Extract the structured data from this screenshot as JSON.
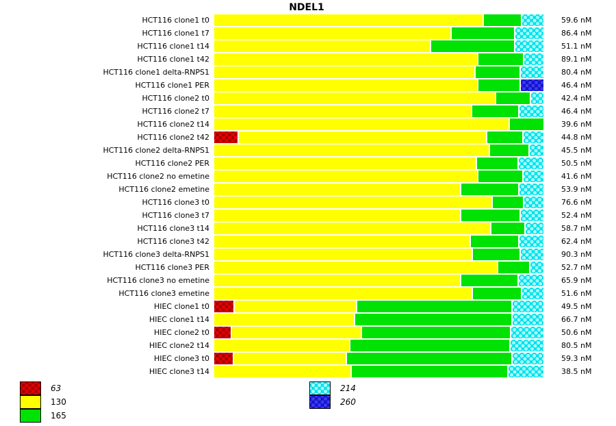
{
  "chart_data": {
    "type": "bar",
    "orientation": "horizontal",
    "stacked": true,
    "title": "NDEL1",
    "value_unit": "nM",
    "axis": {
      "x_range_percent": [
        0,
        100
      ],
      "gridlines": false,
      "ticks_visible": false
    },
    "bands": [
      {
        "id": "63",
        "label": "63",
        "color": "#e80000",
        "pattern": "crosshatch-dots",
        "italic": true
      },
      {
        "id": "130",
        "label": "130",
        "color": "#ffff00",
        "pattern": "solid",
        "italic": false
      },
      {
        "id": "165",
        "label": "165",
        "color": "#00e204",
        "pattern": "solid",
        "italic": false
      },
      {
        "id": "214",
        "label": "214",
        "color": "#00e0ea",
        "pattern": "dots",
        "italic": true
      },
      {
        "id": "260",
        "label": "260",
        "color": "#1212cf",
        "pattern": "dots",
        "italic": true
      }
    ],
    "segment_order": [
      "63",
      "130",
      "165",
      "214",
      "260"
    ],
    "rows": [
      {
        "label": "HCT116 clone1 t0",
        "value": "59.6 nM",
        "segments": [
          0,
          82.1,
          11.4,
          6.5,
          0
        ]
      },
      {
        "label": "HCT116 clone1 t7",
        "value": "86.4 nM",
        "segments": [
          0,
          72.3,
          19.2,
          8.5,
          0
        ]
      },
      {
        "label": "HCT116 clone1 t14",
        "value": "51.1 nM",
        "segments": [
          0,
          66.1,
          25.2,
          8.7,
          0
        ]
      },
      {
        "label": "HCT116 clone1 t42",
        "value": "89.1 nM",
        "segments": [
          0,
          80.5,
          13.7,
          5.8,
          0
        ]
      },
      {
        "label": "HCT116 clone1 delta-RNPS1",
        "value": "80.4 nM",
        "segments": [
          0,
          79.6,
          13.5,
          6.9,
          0
        ]
      },
      {
        "label": "HCT116 clone1 PER",
        "value": "46.4 nM",
        "segments": [
          0,
          80.4,
          12.7,
          0,
          6.9
        ]
      },
      {
        "label": "HCT116 clone2 t0",
        "value": "42.4 nM",
        "segments": [
          0,
          85.9,
          10.4,
          3.7,
          0
        ]
      },
      {
        "label": "HCT116 clone2 t7",
        "value": "46.4 nM",
        "segments": [
          0,
          78.6,
          14.1,
          7.3,
          0
        ]
      },
      {
        "label": "HCT116 clone2 t14",
        "value": "39.6 nM",
        "segments": [
          0,
          89.8,
          10.2,
          0,
          0
        ]
      },
      {
        "label": "HCT116 clone2 t42",
        "value": "44.8 nM",
        "segments": [
          7.1,
          76.1,
          10.6,
          6.2,
          0
        ]
      },
      {
        "label": "HCT116 clone2 delta-RNPS1",
        "value": "45.5 nM",
        "segments": [
          0,
          84.0,
          11.8,
          4.2,
          0
        ]
      },
      {
        "label": "HCT116 clone2 PER",
        "value": "50.5 nM",
        "segments": [
          0,
          80.0,
          12.5,
          7.5,
          0
        ]
      },
      {
        "label": "HCT116 clone2 no emetine",
        "value": "41.6 nM",
        "segments": [
          0,
          80.5,
          13.5,
          6.0,
          0
        ]
      },
      {
        "label": "HCT116 clone2 emetine",
        "value": "53.9 nM",
        "segments": [
          0,
          75.2,
          17.5,
          7.3,
          0
        ]
      },
      {
        "label": "HCT116 clone3 t0",
        "value": "76.6 nM",
        "segments": [
          0,
          84.8,
          9.4,
          5.8,
          0
        ]
      },
      {
        "label": "HCT116 clone3 t7",
        "value": "52.4 nM",
        "segments": [
          0,
          75.2,
          17.9,
          6.9,
          0
        ]
      },
      {
        "label": "HCT116 clone3 t14",
        "value": "58.7 nM",
        "segments": [
          0,
          84.4,
          10.2,
          5.4,
          0
        ]
      },
      {
        "label": "HCT116 clone3 t42",
        "value": "62.4 nM",
        "segments": [
          0,
          78.1,
          14.6,
          7.3,
          0
        ]
      },
      {
        "label": "HCT116 clone3 delta-RNPS1",
        "value": "90.3 nM",
        "segments": [
          0,
          78.8,
          14.3,
          6.9,
          0
        ]
      },
      {
        "label": "HCT116 clone3 PER",
        "value": "52.7 nM",
        "segments": [
          0,
          86.6,
          9.4,
          4.0,
          0
        ]
      },
      {
        "label": "HCT116 clone3 no emetine",
        "value": "65.9 nM",
        "segments": [
          0,
          75.2,
          17.3,
          7.5,
          0
        ]
      },
      {
        "label": "HCT116 clone3 emetine",
        "value": "51.6 nM",
        "segments": [
          0,
          78.8,
          14.8,
          6.4,
          0
        ]
      },
      {
        "label": "HIEC clone1 t0",
        "value": "49.5 nM",
        "segments": [
          5.8,
          37.4,
          47.4,
          9.4,
          0
        ]
      },
      {
        "label": "HIEC clone1 t14",
        "value": "66.7 nM",
        "segments": [
          0,
          42.8,
          47.8,
          9.4,
          0
        ]
      },
      {
        "label": "HIEC clone2 t0",
        "value": "50.6 nM",
        "segments": [
          5.0,
          39.7,
          45.3,
          10.0,
          0
        ]
      },
      {
        "label": "HIEC clone2 t14",
        "value": "80.5 nM",
        "segments": [
          0,
          41.4,
          48.6,
          10.0,
          0
        ]
      },
      {
        "label": "HIEC clone3 t0",
        "value": "59.3 nM",
        "segments": [
          5.6,
          34.5,
          50.5,
          9.4,
          0
        ]
      },
      {
        "label": "HIEC clone3 t14",
        "value": "38.5 nM",
        "segments": [
          0,
          41.8,
          47.4,
          10.8,
          0
        ]
      }
    ],
    "legend": {
      "position": "bottom",
      "groups": [
        {
          "name": "left",
          "band_ids": [
            "63",
            "130",
            "165"
          ]
        },
        {
          "name": "right",
          "band_ids": [
            "214",
            "260"
          ]
        }
      ]
    }
  }
}
